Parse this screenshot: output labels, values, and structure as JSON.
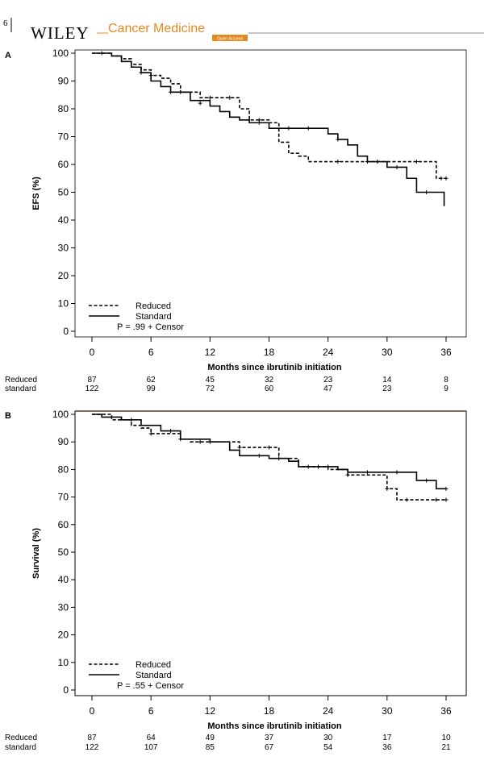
{
  "header": {
    "page_number": "6",
    "publisher": "WILEY",
    "journal": "Cancer Medicine",
    "badge": "Open Access"
  },
  "colors": {
    "brand": "#e28a1f",
    "line": "#000000"
  },
  "chart_data": [
    {
      "panel": "A",
      "type": "line",
      "subtype": "kaplan-meier",
      "xlabel": "Months since ibrutinib initiation",
      "ylabel": "EFS (%)",
      "xlim": [
        -2,
        37.5
      ],
      "ylim": [
        -1,
        101
      ],
      "xticks": [
        0,
        6,
        12,
        18,
        24,
        30,
        36
      ],
      "yticks": [
        0,
        10,
        20,
        30,
        40,
        50,
        60,
        70,
        80,
        90,
        100
      ],
      "legend": {
        "placement": "bottom-left",
        "entries": [
          "Reduced",
          "Standard"
        ],
        "pvalue": "P = .99",
        "censor_label": "+ Censor"
      },
      "series": [
        {
          "name": "Reduced",
          "style": "dashed",
          "x": [
            0,
            2,
            3,
            4,
            5,
            6,
            7,
            8,
            9,
            11,
            14,
            15,
            16,
            18,
            19,
            20,
            21,
            22,
            30,
            35,
            36
          ],
          "y": [
            100,
            99,
            98,
            96,
            94,
            92,
            91,
            89,
            86,
            84,
            84,
            80,
            76,
            75,
            68,
            64,
            63,
            61,
            61,
            55,
            55
          ],
          "censors": [
            [
              6,
              92
            ],
            [
              9,
              86
            ],
            [
              12,
              84
            ],
            [
              14,
              84
            ],
            [
              17,
              76
            ],
            [
              25,
              61
            ],
            [
              28,
              61
            ],
            [
              33,
              61
            ],
            [
              35.5,
              55
            ],
            [
              36,
              55
            ]
          ]
        },
        {
          "name": "Standard",
          "style": "solid",
          "x": [
            0,
            2,
            3,
            4,
            5,
            6,
            7,
            8,
            10,
            12,
            13,
            14,
            15,
            16,
            18,
            23,
            24,
            25,
            26,
            27,
            28,
            30,
            32,
            33,
            35,
            35.8
          ],
          "y": [
            100,
            99,
            97,
            95,
            93,
            90,
            88,
            86,
            83,
            81,
            79,
            77,
            76,
            75,
            73,
            73,
            71,
            69,
            67,
            63,
            61,
            59,
            55,
            50,
            50,
            45
          ],
          "censors": [
            [
              1,
              100
            ],
            [
              5,
              93
            ],
            [
              8,
              86
            ],
            [
              11,
              82
            ],
            [
              17,
              75
            ],
            [
              20,
              73
            ],
            [
              22,
              73
            ],
            [
              25,
              69
            ],
            [
              29,
              61
            ],
            [
              31,
              59
            ],
            [
              34,
              50
            ]
          ]
        }
      ],
      "risk_table": {
        "rows": [
          {
            "label": "Reduced",
            "values": [
              "87",
              "62",
              "45",
              "32",
              "23",
              "14",
              "8"
            ]
          },
          {
            "label": "standard",
            "values": [
              "122",
              "99",
              "72",
              "60",
              "47",
              "23",
              "9"
            ]
          }
        ]
      }
    },
    {
      "panel": "B",
      "type": "line",
      "subtype": "kaplan-meier",
      "xlabel": "Months since ibrutinib initiation",
      "ylabel": "Survival (%)",
      "xlim": [
        -2,
        37.5
      ],
      "ylim": [
        -1,
        101
      ],
      "xticks": [
        0,
        6,
        12,
        18,
        24,
        30,
        36
      ],
      "yticks": [
        0,
        10,
        20,
        30,
        40,
        50,
        60,
        70,
        80,
        90,
        100
      ],
      "legend": {
        "placement": "bottom-left",
        "entries": [
          "Reduced",
          "Standard"
        ],
        "pvalue": "P = .55",
        "censor_label": "+ Censor"
      },
      "series": [
        {
          "name": "Reduced",
          "style": "dashed",
          "x": [
            0,
            2,
            4,
            5,
            6,
            8,
            9,
            10,
            15,
            17,
            19,
            21,
            24,
            26,
            29,
            30,
            31,
            36
          ],
          "y": [
            100,
            98,
            96,
            95,
            93,
            93,
            91,
            90,
            88,
            88,
            84,
            81,
            80,
            78,
            78,
            73,
            69,
            69
          ],
          "censors": [
            [
              6,
              93
            ],
            [
              9,
              91
            ],
            [
              12,
              90
            ],
            [
              15,
              88
            ],
            [
              18,
              88
            ],
            [
              23,
              81
            ],
            [
              26,
              78
            ],
            [
              30,
              73
            ],
            [
              32,
              69
            ],
            [
              35,
              69
            ],
            [
              36,
              69
            ]
          ]
        },
        {
          "name": "Standard",
          "style": "solid",
          "x": [
            0,
            1,
            3,
            5,
            7,
            9,
            12,
            14,
            15,
            16,
            18,
            20,
            21,
            23,
            25,
            26,
            27,
            33,
            35,
            36
          ],
          "y": [
            100,
            99,
            98,
            96,
            94,
            91,
            90,
            87,
            85,
            85,
            84,
            83,
            81,
            81,
            80,
            79,
            79,
            76,
            73,
            73
          ],
          "censors": [
            [
              2,
              99
            ],
            [
              4,
              98
            ],
            [
              8,
              94
            ],
            [
              11,
              90
            ],
            [
              17,
              85
            ],
            [
              19,
              84
            ],
            [
              22,
              81
            ],
            [
              24,
              81
            ],
            [
              28,
              79
            ],
            [
              31,
              79
            ],
            [
              34,
              76
            ],
            [
              36,
              73
            ]
          ]
        }
      ],
      "risk_table": {
        "rows": [
          {
            "label": "Reduced",
            "values": [
              "87",
              "64",
              "49",
              "37",
              "30",
              "17",
              "10"
            ]
          },
          {
            "label": "standard",
            "values": [
              "122",
              "107",
              "85",
              "67",
              "54",
              "36",
              "21"
            ]
          }
        ]
      }
    }
  ]
}
